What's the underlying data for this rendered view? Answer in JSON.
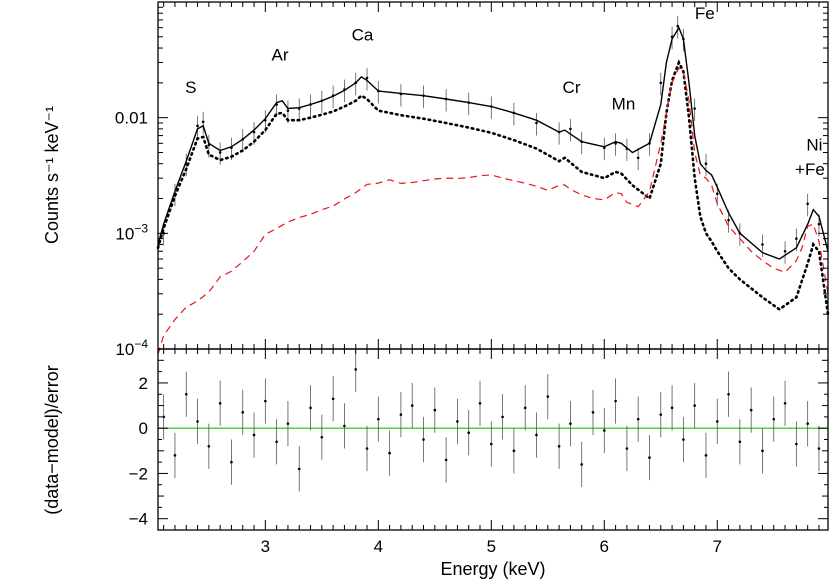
{
  "chart_data": [
    {
      "type": "line",
      "panel": "spectrum",
      "title": "",
      "xlabel": "",
      "ylabel": "Counts s⁻¹ keV⁻¹",
      "yscale": "log",
      "xlim": [
        2.05,
        7.98
      ],
      "ylim": [
        0.0001,
        0.1
      ],
      "y_tick_labels": [
        {
          "value": 0.01,
          "text": "0.01"
        },
        {
          "value": 0.001,
          "base": "10",
          "exp": "−3"
        },
        {
          "value": 0.0001,
          "base": "10",
          "exp": "−4"
        }
      ],
      "annotations": [
        {
          "text": "S",
          "x": 2.34,
          "y": 0.0164
        },
        {
          "text": "Ar",
          "x": 3.13,
          "y": 0.0312
        },
        {
          "text": "Ca",
          "x": 3.86,
          "y": 0.0463
        },
        {
          "text": "Cr",
          "x": 5.71,
          "y": 0.0163
        },
        {
          "text": "Mn",
          "x": 6.17,
          "y": 0.0118
        },
        {
          "text": "Fe",
          "x": 6.89,
          "y": 0.0714
        },
        {
          "text": "Ni",
          "x": 7.86,
          "y": 0.0052
        },
        {
          "text": "+Fe",
          "x": 7.82,
          "y": 0.0032
        }
      ],
      "series": [
        {
          "style": "data points with error bars",
          "color": "#000000",
          "x": [
            2.1,
            2.2,
            2.3,
            2.4,
            2.45,
            2.5,
            2.6,
            2.7,
            2.8,
            2.9,
            3.0,
            3.1,
            3.2,
            3.3,
            3.4,
            3.5,
            3.6,
            3.7,
            3.8,
            3.9,
            4.0,
            4.2,
            4.4,
            4.6,
            4.8,
            5.0,
            5.2,
            5.4,
            5.6,
            5.7,
            5.8,
            6.0,
            6.1,
            6.2,
            6.3,
            6.4,
            6.5,
            6.6,
            6.65,
            6.7,
            6.8,
            6.9,
            7.0,
            7.1,
            7.2,
            7.4,
            7.6,
            7.7,
            7.8,
            7.9
          ],
          "y": [
            0.001,
            0.0022,
            0.004,
            0.0085,
            0.0092,
            0.0058,
            0.005,
            0.0055,
            0.0065,
            0.0075,
            0.0095,
            0.013,
            0.0115,
            0.012,
            0.013,
            0.014,
            0.0155,
            0.0175,
            0.02,
            0.022,
            0.017,
            0.016,
            0.0155,
            0.0145,
            0.0135,
            0.0125,
            0.011,
            0.009,
            0.0075,
            0.008,
            0.0062,
            0.0055,
            0.006,
            0.0054,
            0.0045,
            0.006,
            0.02,
            0.05,
            0.062,
            0.048,
            0.012,
            0.004,
            0.0022,
            0.0013,
            0.001,
            0.0008,
            0.0007,
            0.0009,
            0.0018,
            0.0012
          ],
          "yerr_rel": 0.22
        },
        {
          "name": "",
          "style": "solid",
          "color": "#000000",
          "x": [
            2.05,
            2.1,
            2.2,
            2.3,
            2.4,
            2.45,
            2.5,
            2.6,
            2.7,
            2.8,
            2.9,
            3.0,
            3.1,
            3.15,
            3.2,
            3.3,
            3.4,
            3.5,
            3.6,
            3.7,
            3.8,
            3.85,
            3.9,
            4.0,
            4.2,
            4.4,
            4.6,
            4.8,
            5.0,
            5.2,
            5.4,
            5.6,
            5.65,
            5.8,
            6.0,
            6.1,
            6.15,
            6.25,
            6.4,
            6.5,
            6.55,
            6.6,
            6.66,
            6.7,
            6.75,
            6.8,
            6.85,
            6.9,
            6.95,
            7.0,
            7.1,
            7.2,
            7.4,
            7.55,
            7.7,
            7.8,
            7.85,
            7.9,
            7.98
          ],
          "y": [
            0.0008,
            0.0012,
            0.0023,
            0.0042,
            0.008,
            0.0085,
            0.006,
            0.0052,
            0.0056,
            0.0065,
            0.0078,
            0.0098,
            0.0135,
            0.014,
            0.012,
            0.0122,
            0.013,
            0.014,
            0.0153,
            0.0172,
            0.02,
            0.0225,
            0.021,
            0.017,
            0.0162,
            0.0155,
            0.0145,
            0.0135,
            0.0125,
            0.011,
            0.0095,
            0.0075,
            0.0078,
            0.0062,
            0.0056,
            0.0062,
            0.006,
            0.005,
            0.006,
            0.013,
            0.03,
            0.048,
            0.06,
            0.048,
            0.02,
            0.007,
            0.004,
            0.0035,
            0.0032,
            0.0025,
            0.0015,
            0.001,
            0.00068,
            0.0006,
            0.00075,
            0.0012,
            0.0016,
            0.0014,
            0.0007
          ]
        },
        {
          "name": "",
          "style": "dotted",
          "color": "#000000",
          "x": [
            2.05,
            2.1,
            2.2,
            2.3,
            2.4,
            2.45,
            2.5,
            2.6,
            2.7,
            2.8,
            2.9,
            3.0,
            3.1,
            3.15,
            3.2,
            3.3,
            3.4,
            3.5,
            3.6,
            3.7,
            3.8,
            3.85,
            3.9,
            4.0,
            4.2,
            4.4,
            4.6,
            4.8,
            5.0,
            5.2,
            5.4,
            5.6,
            5.65,
            5.8,
            6.0,
            6.1,
            6.15,
            6.25,
            6.4,
            6.5,
            6.55,
            6.6,
            6.66,
            6.7,
            6.75,
            6.8,
            6.85,
            6.9,
            6.95,
            7.0,
            7.1,
            7.2,
            7.4,
            7.55,
            7.7,
            7.8,
            7.85,
            7.9,
            7.98
          ],
          "y": [
            0.00075,
            0.0011,
            0.0021,
            0.0036,
            0.0066,
            0.0068,
            0.0048,
            0.0043,
            0.0046,
            0.0052,
            0.0062,
            0.0078,
            0.0108,
            0.011,
            0.0095,
            0.0095,
            0.01,
            0.0106,
            0.0113,
            0.0125,
            0.014,
            0.0155,
            0.0145,
            0.0115,
            0.0105,
            0.0098,
            0.009,
            0.0082,
            0.0074,
            0.0064,
            0.0054,
            0.0042,
            0.0045,
            0.0034,
            0.003,
            0.0034,
            0.0033,
            0.0026,
            0.002,
            0.004,
            0.011,
            0.021,
            0.03,
            0.025,
            0.01,
            0.003,
            0.0014,
            0.001,
            0.00085,
            0.0007,
            0.0005,
            0.0004,
            0.00028,
            0.00022,
            0.00028,
            0.00055,
            0.0008,
            0.0007,
            0.0002
          ]
        },
        {
          "name": "",
          "style": "dashed",
          "color": "#e8141e",
          "x": [
            2.05,
            2.1,
            2.2,
            2.3,
            2.4,
            2.5,
            2.6,
            2.7,
            2.8,
            2.9,
            3.0,
            3.1,
            3.2,
            3.3,
            3.4,
            3.5,
            3.6,
            3.7,
            3.8,
            3.9,
            4.0,
            4.1,
            4.2,
            4.3,
            4.4,
            4.5,
            4.6,
            4.7,
            4.8,
            4.9,
            5.0,
            5.1,
            5.2,
            5.3,
            5.4,
            5.5,
            5.6,
            5.65,
            5.7,
            5.8,
            5.9,
            6.0,
            6.1,
            6.15,
            6.2,
            6.3,
            6.4,
            6.5,
            6.55,
            6.6,
            6.66,
            6.7,
            6.75,
            6.8,
            6.85,
            6.9,
            6.95,
            7.0,
            7.1,
            7.2,
            7.3,
            7.4,
            7.5,
            7.6,
            7.7,
            7.75,
            7.8,
            7.85,
            7.9,
            7.98
          ],
          "y": [
            9e-05,
            0.00013,
            0.00018,
            0.00023,
            0.00026,
            0.00031,
            0.00042,
            0.00047,
            0.00057,
            0.0007,
            0.00098,
            0.0011,
            0.00125,
            0.00137,
            0.00146,
            0.0016,
            0.00172,
            0.00198,
            0.00225,
            0.00265,
            0.00272,
            0.0029,
            0.0027,
            0.00275,
            0.00285,
            0.00295,
            0.003,
            0.00298,
            0.00303,
            0.00315,
            0.0032,
            0.003,
            0.00285,
            0.00272,
            0.00255,
            0.00235,
            0.0026,
            0.00262,
            0.0024,
            0.00215,
            0.002,
            0.00195,
            0.00225,
            0.0022,
            0.00185,
            0.0017,
            0.0023,
            0.006,
            0.011,
            0.02,
            0.027,
            0.025,
            0.014,
            0.005,
            0.0032,
            0.003,
            0.0026,
            0.0018,
            0.00115,
            0.0009,
            0.0007,
            0.00058,
            0.0005,
            0.00046,
            0.00058,
            0.00075,
            0.00115,
            0.0012,
            0.00085,
            0.0003
          ]
        }
      ]
    },
    {
      "type": "scatter",
      "panel": "residuals",
      "title": "",
      "xlabel": "Energy (keV)",
      "ylabel": "(data−model)/error",
      "xlim": [
        2.05,
        7.98
      ],
      "ylim": [
        -4.5,
        3.5
      ],
      "x_tick_labels": [
        "3",
        "4",
        "5",
        "6",
        "7"
      ],
      "x_ticks": [
        3,
        4,
        5,
        6,
        7
      ],
      "y_tick_labels": [
        "2",
        "0",
        "−2",
        "−4"
      ],
      "y_ticks": [
        2,
        0,
        -2,
        -4
      ],
      "reference_line": {
        "y": 0,
        "color": "#4cd24c"
      },
      "series": [
        {
          "style": "residual points with ±1 error bars",
          "color": "#000000",
          "x": [
            2.1,
            2.2,
            2.3,
            2.4,
            2.5,
            2.6,
            2.7,
            2.8,
            2.9,
            3.0,
            3.1,
            3.2,
            3.3,
            3.4,
            3.5,
            3.6,
            3.7,
            3.8,
            3.9,
            4.0,
            4.1,
            4.2,
            4.3,
            4.4,
            4.5,
            4.6,
            4.7,
            4.8,
            4.9,
            5.0,
            5.1,
            5.2,
            5.3,
            5.4,
            5.5,
            5.6,
            5.7,
            5.8,
            5.9,
            6.0,
            6.1,
            6.2,
            6.3,
            6.4,
            6.5,
            6.6,
            6.7,
            6.8,
            6.9,
            7.0,
            7.1,
            7.2,
            7.3,
            7.4,
            7.5,
            7.6,
            7.7,
            7.8,
            7.9
          ],
          "y": [
            0.5,
            -1.2,
            1.5,
            0.3,
            -0.8,
            1.1,
            -1.5,
            0.7,
            -0.3,
            1.2,
            -0.6,
            0.2,
            -1.8,
            0.9,
            -0.4,
            1.3,
            0.1,
            2.6,
            -0.9,
            0.4,
            -1.1,
            0.6,
            1.0,
            -0.5,
            0.8,
            -1.4,
            0.3,
            -0.2,
            1.1,
            -0.7,
            0.5,
            -1.0,
            0.9,
            -0.3,
            1.4,
            -0.8,
            0.2,
            -1.6,
            0.7,
            -0.1,
            1.2,
            -0.9,
            0.4,
            -1.3,
            0.6,
            0.9,
            -0.5,
            1.0,
            -1.2,
            0.3,
            1.5,
            -0.6,
            0.8,
            -1.0,
            0.4,
            1.1,
            -0.7,
            0.2,
            -0.9
          ],
          "yerr": 1.0
        }
      ]
    }
  ]
}
